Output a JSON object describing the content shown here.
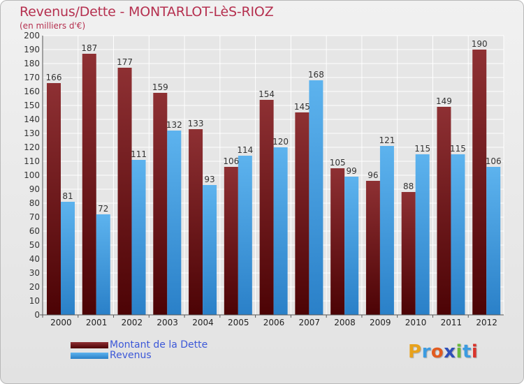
{
  "chart_data": {
    "type": "bar",
    "title": "Revenus/Dette - MONTARLOT-LèS-RIOZ",
    "subtitle": "(en milliers d'€)",
    "categories": [
      "2000",
      "2001",
      "2002",
      "2003",
      "2004",
      "2005",
      "2006",
      "2007",
      "2008",
      "2009",
      "2010",
      "2011",
      "2012"
    ],
    "series": [
      {
        "name": "Montant de la Dette",
        "color": "#7a1c1f",
        "values": [
          166,
          187,
          177,
          159,
          133,
          106,
          154,
          145,
          105,
          96,
          88,
          149,
          190
        ]
      },
      {
        "name": "Revenus",
        "color": "#3d9de0",
        "values": [
          81,
          72,
          111,
          132,
          93,
          114,
          120,
          168,
          99,
          121,
          115,
          115,
          106
        ]
      }
    ],
    "ylim": [
      0,
      200
    ],
    "ytick_step": 10,
    "grid": true,
    "legend_position": "bottom-left"
  },
  "logo": {
    "text": "Proxiti",
    "colors": [
      "#e8a21c",
      "#3c9be0",
      "#e25b1f",
      "#2f4fb8",
      "#6ab93c",
      "#3c9be0",
      "#d9342b"
    ]
  }
}
